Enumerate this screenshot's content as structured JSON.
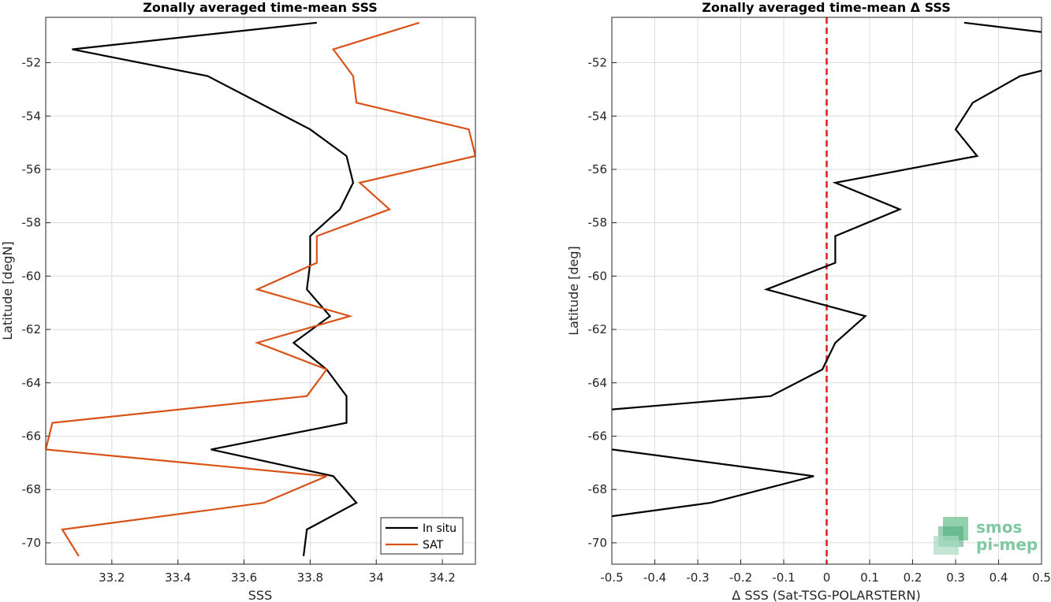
{
  "chart_data": [
    {
      "type": "line",
      "title": "Zonally averaged time-mean SSS",
      "xlabel": "SSS",
      "ylabel": "Latitude [degN]",
      "xlim": [
        33.0,
        34.3
      ],
      "ylim": [
        -70.8,
        -50.3
      ],
      "xticks": [
        33.2,
        33.4,
        33.6,
        33.8,
        34,
        34.2
      ],
      "xtick_labels": [
        "33.2",
        "33.4",
        "33.6",
        "33.8",
        "34",
        "34.2"
      ],
      "yticks": [
        -52,
        -54,
        -56,
        -58,
        -60,
        -62,
        -64,
        -66,
        -68,
        -70
      ],
      "ytick_labels": [
        "-52",
        "-54",
        "-56",
        "-58",
        "-60",
        "-62",
        "-64",
        "-66",
        "-68",
        "-70"
      ],
      "grid": true,
      "legend_position": "bottom-right",
      "series": [
        {
          "name": "In situ",
          "color": "#000000",
          "x": [
            33.82,
            33.08,
            33.49,
            33.8,
            33.91,
            33.93,
            33.89,
            33.8,
            33.8,
            33.79,
            33.86,
            33.75,
            33.85,
            33.91,
            33.91,
            33.5,
            33.87,
            33.94,
            33.79,
            33.78
          ],
          "y": [
            -50.5,
            -51.5,
            -52.5,
            -54.5,
            -55.5,
            -56.5,
            -57.5,
            -58.5,
            -59.5,
            -60.5,
            -61.5,
            -62.5,
            -63.5,
            -64.5,
            -65.5,
            -66.5,
            -67.5,
            -68.5,
            -69.5,
            -70.5
          ]
        },
        {
          "name": "SAT",
          "color": "#d95319",
          "x": [
            34.13,
            33.87,
            33.93,
            33.94,
            34.28,
            34.3,
            33.95,
            34.04,
            33.82,
            33.82,
            33.64,
            33.92,
            33.64,
            33.85,
            33.79,
            33.02,
            33.0,
            33.85,
            33.66,
            33.05,
            33.1
          ],
          "y": [
            -50.5,
            -51.5,
            -52.5,
            -53.5,
            -54.5,
            -55.5,
            -56.5,
            -57.5,
            -58.5,
            -59.5,
            -60.5,
            -61.5,
            -62.5,
            -63.5,
            -64.5,
            -65.5,
            -66.5,
            -67.5,
            -68.5,
            -69.5,
            -70.5
          ]
        }
      ]
    },
    {
      "type": "line",
      "title": "Zonally averaged time-mean Δ SSS",
      "xlabel": "Δ SSS (Sat-TSG-POLARSTERN)",
      "ylabel": "Latitude [deg]",
      "xlim": [
        -0.5,
        0.5
      ],
      "ylim": [
        -70.8,
        -50.3
      ],
      "xticks": [
        -0.5,
        -0.4,
        -0.3,
        -0.2,
        -0.1,
        0,
        0.1,
        0.2,
        0.3,
        0.4,
        0.5
      ],
      "xtick_labels": [
        "-0.5",
        "-0.4",
        "-0.3",
        "-0.2",
        "-0.1",
        "0",
        "0.1",
        "0.2",
        "0.3",
        "0.4",
        "0.5"
      ],
      "yticks": [
        -52,
        -54,
        -56,
        -58,
        -60,
        -62,
        -64,
        -66,
        -68,
        -70
      ],
      "ytick_labels": [
        "-52",
        "-54",
        "-56",
        "-58",
        "-60",
        "-62",
        "-64",
        "-66",
        "-68",
        "-70"
      ],
      "grid": true,
      "reference_line": {
        "x": 0,
        "color": "#e41a1c",
        "style": "dashed"
      },
      "series": [
        {
          "color": "#000000",
          "segments": [
            {
              "x": [
                0.32,
                0.5
              ],
              "y": [
                -50.5,
                -50.85
              ]
            },
            {
              "x": [
                0.5,
                0.45,
                0.34,
                0.3,
                0.35,
                0.02,
                0.17,
                0.02,
                0.02,
                -0.14,
                0.09,
                0.02,
                -0.01,
                -0.13,
                -0.5
              ],
              "y": [
                -52.3,
                -52.5,
                -53.5,
                -54.5,
                -55.5,
                -56.5,
                -57.5,
                -58.5,
                -59.5,
                -60.5,
                -61.5,
                -62.5,
                -63.5,
                -64.5,
                -65.0
              ]
            },
            {
              "x": [
                -0.5,
                -0.03,
                -0.27,
                -0.5
              ],
              "y": [
                -66.5,
                -67.5,
                -68.5,
                -69.0
              ]
            }
          ]
        }
      ]
    }
  ],
  "logo": {
    "line1": "smos",
    "line2": "pi-mep",
    "colors": [
      "#7fc8a0",
      "#4aa878",
      "#a8dcc0"
    ]
  }
}
